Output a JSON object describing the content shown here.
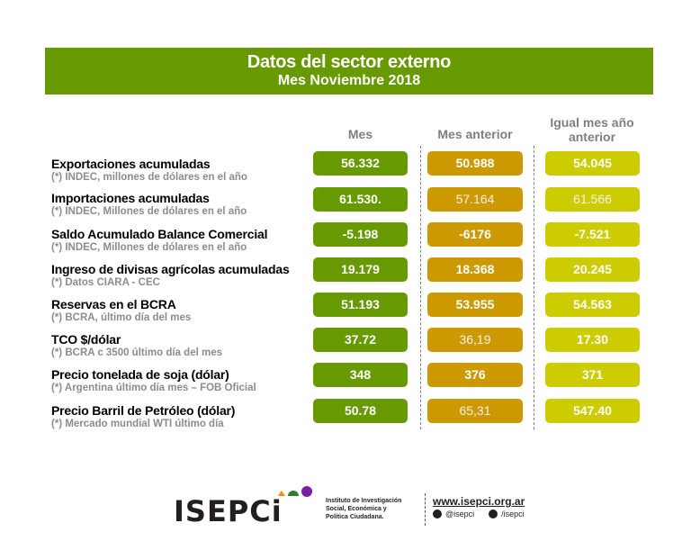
{
  "header": {
    "title": "Datos del sector externo",
    "subtitle": "Mes Noviembre 2018"
  },
  "columns": [
    "Mes",
    "Mes anterior",
    "Igual mes año anterior"
  ],
  "colors": {
    "mes": "#669a00",
    "mes_anterior": "#cc9900",
    "anio_anterior": "#cccc00"
  },
  "rows": [
    {
      "title": "Exportaciones acumuladas",
      "source": "(*) INDEC, millones de dólares en el año",
      "values": [
        "56.332",
        "50.988",
        "54.045"
      ]
    },
    {
      "title": "Importaciones acumuladas",
      "source": "(*) INDEC, Millones de dólares en el año",
      "values": [
        "61.530.",
        "57.164",
        "61.566"
      ]
    },
    {
      "title": "Saldo Acumulado Balance Comercial",
      "source": "(*) INDEC, Millones de dólares en el año",
      "values": [
        "-5.198",
        "-6176",
        "-7.521"
      ]
    },
    {
      "title": "Ingreso de divisas agrícolas acumuladas",
      "source": "(*) Datos CIARA - CEC",
      "values": [
        "19.179",
        "18.368",
        "20.245"
      ]
    },
    {
      "title": "Reservas en el BCRA",
      "source": "(*) BCRA, último día del mes",
      "values": [
        "51.193",
        "53.955",
        "54.563"
      ]
    },
    {
      "title": "TCO $/dólar",
      "source": "(*) BCRA c 3500 último día del mes",
      "values": [
        "37.72",
        "36,19",
        "17.30"
      ]
    },
    {
      "title": "Precio tonelada de soja (dólar)",
      "source": "(*) Argentina último día mes – FOB Oficial",
      "values": [
        "348",
        "376",
        "371"
      ]
    },
    {
      "title": "Precio Barril de Petróleo (dólar)",
      "source": "(*) Mercado mundial WTI último día",
      "values": [
        "50.78",
        "65,31",
        "547.40"
      ]
    }
  ],
  "footer": {
    "logo": "ISEPCi",
    "institute_lines": [
      "Instituto de Investigación",
      "Social, Económica y",
      "Política Ciudadana."
    ],
    "website": "www.isepci.org.ar",
    "twitter": "@isepci",
    "facebook": "/isepci"
  }
}
